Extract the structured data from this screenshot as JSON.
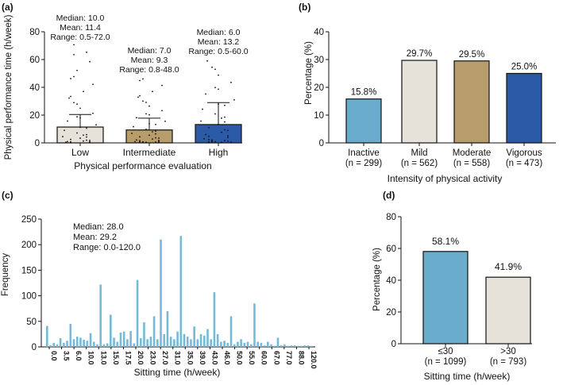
{
  "colors": {
    "inactive": "#6aaccc",
    "mild": "#e6e2da",
    "moderate": "#b79c6c",
    "vigorous": "#2d5aa6",
    "hist": "#77b9d8",
    "c_le30": "#6aaccc",
    "c_gt30": "#e6e2da"
  },
  "chart_data": [
    {
      "panel": "(a)",
      "type": "bar",
      "ylabel": "Physical performance time (h/week)",
      "xlabel": "Physical performance evaluation",
      "ylim": [
        0,
        80
      ],
      "yticks": [
        "0",
        "20",
        "40",
        "60",
        "80"
      ],
      "categories": [
        "Low",
        "Intermediate",
        "High"
      ],
      "values": [
        11.4,
        9.3,
        13.2
      ],
      "errors": [
        9.0,
        8.5,
        15.8
      ],
      "annotations": [
        [
          "Median: 10.0",
          "Mean: 11.4",
          "Range: 0.5-72.0"
        ],
        [
          "Median: 7.0",
          "Mean: 9.3",
          "Range: 0.8-48.0"
        ],
        [
          "Median: 6.0",
          "Mean: 13.2",
          "Range: 0.5-60.0"
        ]
      ],
      "bar_colors": [
        "#e6e2da",
        "#b79c6c",
        "#2d5aa6"
      ]
    },
    {
      "panel": "(b)",
      "type": "bar",
      "ylabel": "Percentage (%)",
      "xlabel": "Intensity of physical activity",
      "ylim": [
        0,
        40
      ],
      "yticks": [
        "0",
        "10",
        "20",
        "30",
        "40"
      ],
      "categories": [
        "Inactive",
        "Mild",
        "Moderate",
        "Vigorous"
      ],
      "sublabels": [
        "(n = 299)",
        "(n = 562)",
        "(n = 558)",
        "(n = 473)"
      ],
      "values": [
        15.8,
        29.7,
        29.5,
        25.0
      ],
      "value_labels": [
        "15.8%",
        "29.7%",
        "29.5%",
        "25.0%"
      ]
    },
    {
      "panel": "(c)",
      "type": "bar",
      "ylabel": "Frequency",
      "xlabel": "Sitting time (h/week)",
      "ylim": [
        0,
        250
      ],
      "yticks": [
        "0",
        "50",
        "100",
        "150",
        "200",
        "250"
      ],
      "annotation": [
        "Median: 28.0",
        "Mean: 29.2",
        "Range: 0.0-120.0"
      ],
      "tick_labels": [
        "0.0",
        "3.5",
        "6.0",
        "10.0",
        "13.0",
        "15.0",
        "17.5",
        "20.0",
        "23.0",
        "27.0",
        "31.0",
        "35.0",
        "39.0",
        "43.0",
        "46.0",
        "50.0",
        "55.0",
        "60.0",
        "67.0",
        "77.0",
        "88.0",
        "120.0"
      ],
      "values": [
        41,
        3,
        8,
        5,
        17,
        8,
        12,
        45,
        15,
        20,
        18,
        14,
        12,
        27,
        10,
        5,
        122,
        5,
        7,
        63,
        18,
        10,
        28,
        30,
        15,
        31,
        7,
        131,
        17,
        48,
        15,
        20,
        60,
        15,
        210,
        25,
        70,
        20,
        15,
        30,
        217,
        25,
        20,
        15,
        40,
        15,
        25,
        22,
        35,
        15,
        107,
        25,
        10,
        12,
        8,
        60,
        5,
        10,
        15,
        8,
        10,
        5,
        85,
        10,
        8,
        3,
        10,
        5,
        2,
        18,
        3,
        5,
        2,
        3,
        3,
        2,
        2,
        3,
        3,
        2
      ]
    },
    {
      "panel": "(d)",
      "type": "bar",
      "ylabel": "Percentage (%)",
      "xlabel": "Sitting time (h/week)",
      "ylim": [
        0,
        80
      ],
      "yticks": [
        "0",
        "20",
        "40",
        "60",
        "80"
      ],
      "categories": [
        "≤30",
        ">30"
      ],
      "sublabels": [
        "(n = 1099)",
        "(n = 793)"
      ],
      "values": [
        58.1,
        41.9
      ],
      "value_labels": [
        "58.1%",
        "41.9%"
      ]
    }
  ]
}
